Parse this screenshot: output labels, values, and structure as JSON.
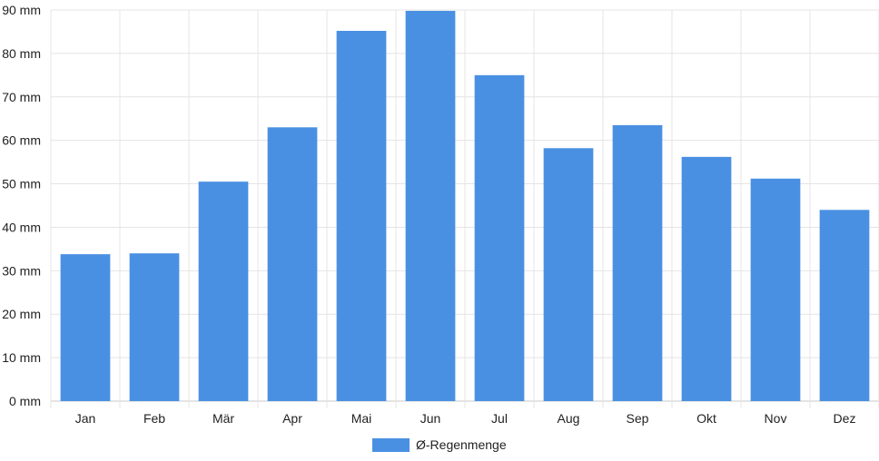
{
  "chart_data": {
    "type": "bar",
    "categories": [
      "Jan",
      "Feb",
      "Mär",
      "Apr",
      "Mai",
      "Jun",
      "Jul",
      "Aug",
      "Sep",
      "Okt",
      "Nov",
      "Dez"
    ],
    "series": [
      {
        "name": "Ø-Regenmenge",
        "values": [
          33.8,
          34.0,
          50.5,
          63.0,
          85.2,
          89.8,
          75.0,
          58.2,
          63.5,
          56.2,
          51.2,
          44.0
        ],
        "color": "#4A90E2"
      }
    ],
    "title": "",
    "xlabel": "",
    "ylabel": "",
    "ylim": [
      0,
      90
    ],
    "yticks": [
      "0 mm",
      "10 mm",
      "20 mm",
      "30 mm",
      "40 mm",
      "50 mm",
      "60 mm",
      "70 mm",
      "80 mm",
      "90 mm"
    ],
    "grid": true,
    "legend_position": "bottom"
  }
}
